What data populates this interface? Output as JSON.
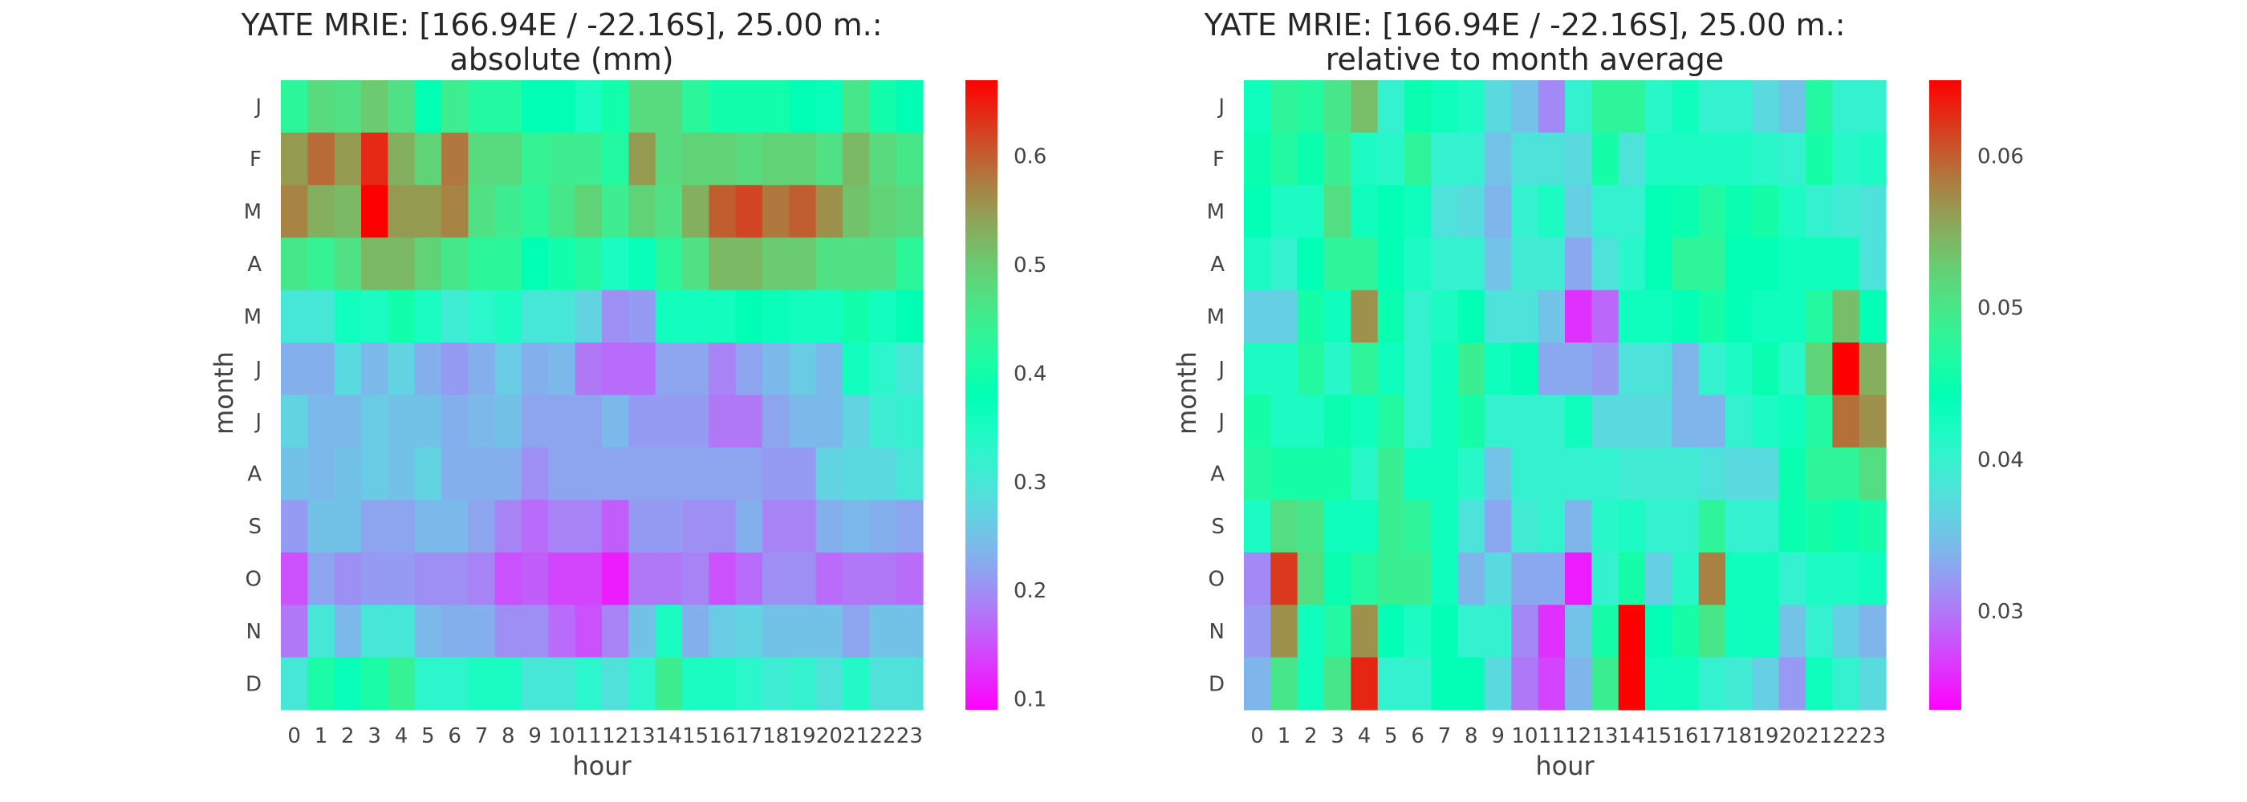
{
  "chart_data": [
    {
      "type": "heatmap",
      "title": "YATE MRIE: [166.94E / -22.16S], 25.00 m.:",
      "subtitle": "absolute (mm)",
      "xlabel": "hour",
      "ylabel": "month",
      "x": [
        "0",
        "1",
        "2",
        "3",
        "4",
        "5",
        "6",
        "7",
        "8",
        "9",
        "10",
        "11",
        "12",
        "13",
        "14",
        "15",
        "16",
        "17",
        "18",
        "19",
        "20",
        "21",
        "22",
        "23"
      ],
      "y": [
        "J",
        "F",
        "M",
        "A",
        "M",
        "J",
        "J",
        "A",
        "S",
        "O",
        "N",
        "D"
      ],
      "colormap": "rainbow",
      "colorbar": {
        "min": 0.09,
        "max": 0.67,
        "ticks": [
          0.1,
          0.2,
          0.3,
          0.4,
          0.5,
          0.6
        ]
      },
      "values": [
        [
          0.43,
          0.48,
          0.47,
          0.5,
          0.47,
          0.38,
          0.45,
          0.42,
          0.42,
          0.38,
          0.38,
          0.35,
          0.4,
          0.48,
          0.48,
          0.43,
          0.4,
          0.4,
          0.4,
          0.38,
          0.37,
          0.46,
          0.4,
          0.38
        ],
        [
          0.55,
          0.59,
          0.55,
          0.64,
          0.53,
          0.49,
          0.58,
          0.48,
          0.48,
          0.44,
          0.45,
          0.45,
          0.42,
          0.55,
          0.48,
          0.49,
          0.49,
          0.48,
          0.49,
          0.49,
          0.47,
          0.52,
          0.48,
          0.46
        ],
        [
          0.57,
          0.53,
          0.52,
          0.67,
          0.55,
          0.55,
          0.57,
          0.47,
          0.45,
          0.43,
          0.46,
          0.49,
          0.45,
          0.49,
          0.47,
          0.53,
          0.6,
          0.62,
          0.58,
          0.6,
          0.56,
          0.51,
          0.49,
          0.48
        ],
        [
          0.46,
          0.44,
          0.47,
          0.52,
          0.52,
          0.49,
          0.46,
          0.43,
          0.43,
          0.38,
          0.4,
          0.42,
          0.35,
          0.37,
          0.43,
          0.47,
          0.52,
          0.52,
          0.5,
          0.5,
          0.47,
          0.47,
          0.47,
          0.43
        ],
        [
          0.3,
          0.3,
          0.36,
          0.35,
          0.4,
          0.35,
          0.31,
          0.33,
          0.35,
          0.3,
          0.3,
          0.27,
          0.2,
          0.21,
          0.36,
          0.36,
          0.36,
          0.38,
          0.37,
          0.36,
          0.36,
          0.4,
          0.36,
          0.38
        ],
        [
          0.23,
          0.23,
          0.28,
          0.24,
          0.27,
          0.23,
          0.21,
          0.23,
          0.26,
          0.23,
          0.24,
          0.18,
          0.17,
          0.17,
          0.22,
          0.22,
          0.19,
          0.22,
          0.24,
          0.26,
          0.24,
          0.36,
          0.33,
          0.3
        ],
        [
          0.27,
          0.24,
          0.24,
          0.26,
          0.25,
          0.25,
          0.23,
          0.24,
          0.25,
          0.22,
          0.22,
          0.22,
          0.24,
          0.21,
          0.21,
          0.21,
          0.18,
          0.18,
          0.22,
          0.24,
          0.24,
          0.27,
          0.31,
          0.32
        ],
        [
          0.25,
          0.24,
          0.25,
          0.26,
          0.25,
          0.27,
          0.23,
          0.23,
          0.23,
          0.2,
          0.22,
          0.22,
          0.22,
          0.22,
          0.22,
          0.22,
          0.22,
          0.22,
          0.21,
          0.21,
          0.27,
          0.28,
          0.28,
          0.3
        ],
        [
          0.21,
          0.25,
          0.25,
          0.22,
          0.22,
          0.24,
          0.24,
          0.22,
          0.19,
          0.17,
          0.19,
          0.19,
          0.16,
          0.21,
          0.21,
          0.2,
          0.2,
          0.23,
          0.19,
          0.19,
          0.23,
          0.24,
          0.23,
          0.22
        ],
        [
          0.15,
          0.22,
          0.2,
          0.21,
          0.21,
          0.2,
          0.2,
          0.19,
          0.15,
          0.16,
          0.14,
          0.14,
          0.11,
          0.18,
          0.18,
          0.19,
          0.15,
          0.17,
          0.2,
          0.2,
          0.17,
          0.18,
          0.18,
          0.17
        ],
        [
          0.18,
          0.3,
          0.24,
          0.3,
          0.3,
          0.24,
          0.23,
          0.23,
          0.2,
          0.2,
          0.17,
          0.15,
          0.19,
          0.25,
          0.35,
          0.23,
          0.26,
          0.27,
          0.25,
          0.25,
          0.25,
          0.22,
          0.25,
          0.25
        ],
        [
          0.3,
          0.41,
          0.37,
          0.41,
          0.44,
          0.33,
          0.33,
          0.35,
          0.35,
          0.3,
          0.3,
          0.33,
          0.29,
          0.33,
          0.45,
          0.35,
          0.35,
          0.33,
          0.31,
          0.32,
          0.29,
          0.34,
          0.29,
          0.29
        ]
      ]
    },
    {
      "type": "heatmap",
      "title": "YATE MRIE: [166.94E / -22.16S], 25.00 m.:",
      "subtitle": "relative to month average",
      "xlabel": "hour",
      "ylabel": "month",
      "x": [
        "0",
        "1",
        "2",
        "3",
        "4",
        "5",
        "6",
        "7",
        "8",
        "9",
        "10",
        "11",
        "12",
        "13",
        "14",
        "15",
        "16",
        "17",
        "18",
        "19",
        "20",
        "21",
        "22",
        "23"
      ],
      "y": [
        "J",
        "F",
        "M",
        "A",
        "M",
        "J",
        "J",
        "A",
        "S",
        "O",
        "N",
        "D"
      ],
      "colormap": "rainbow",
      "colorbar": {
        "min": 0.0235,
        "max": 0.065,
        "ticks": [
          0.03,
          0.04,
          0.05,
          0.06
        ]
      },
      "values": [
        [
          0.043,
          0.048,
          0.047,
          0.05,
          0.054,
          0.04,
          0.045,
          0.043,
          0.042,
          0.037,
          0.035,
          0.031,
          0.04,
          0.048,
          0.048,
          0.041,
          0.043,
          0.04,
          0.04,
          0.037,
          0.035,
          0.047,
          0.04,
          0.04
        ],
        [
          0.045,
          0.047,
          0.045,
          0.049,
          0.042,
          0.041,
          0.048,
          0.04,
          0.04,
          0.035,
          0.038,
          0.038,
          0.037,
          0.046,
          0.038,
          0.042,
          0.042,
          0.042,
          0.042,
          0.041,
          0.04,
          0.046,
          0.041,
          0.042
        ],
        [
          0.044,
          0.042,
          0.042,
          0.051,
          0.043,
          0.044,
          0.043,
          0.038,
          0.037,
          0.034,
          0.04,
          0.042,
          0.036,
          0.04,
          0.04,
          0.044,
          0.045,
          0.047,
          0.045,
          0.046,
          0.042,
          0.04,
          0.039,
          0.038
        ],
        [
          0.042,
          0.04,
          0.044,
          0.048,
          0.048,
          0.044,
          0.042,
          0.04,
          0.04,
          0.035,
          0.039,
          0.039,
          0.033,
          0.038,
          0.041,
          0.044,
          0.048,
          0.048,
          0.044,
          0.044,
          0.043,
          0.043,
          0.043,
          0.038
        ],
        [
          0.036,
          0.036,
          0.046,
          0.043,
          0.057,
          0.045,
          0.04,
          0.042,
          0.044,
          0.038,
          0.038,
          0.035,
          0.026,
          0.029,
          0.043,
          0.043,
          0.044,
          0.046,
          0.044,
          0.043,
          0.043,
          0.047,
          0.054,
          0.044
        ],
        [
          0.042,
          0.042,
          0.047,
          0.041,
          0.048,
          0.043,
          0.04,
          0.043,
          0.049,
          0.043,
          0.044,
          0.033,
          0.033,
          0.032,
          0.038,
          0.038,
          0.034,
          0.04,
          0.042,
          0.045,
          0.041,
          0.052,
          0.065,
          0.055
        ],
        [
          0.046,
          0.042,
          0.042,
          0.045,
          0.043,
          0.047,
          0.04,
          0.043,
          0.046,
          0.04,
          0.04,
          0.04,
          0.043,
          0.037,
          0.037,
          0.037,
          0.034,
          0.034,
          0.04,
          0.042,
          0.043,
          0.047,
          0.059,
          0.057
        ],
        [
          0.047,
          0.046,
          0.046,
          0.046,
          0.041,
          0.049,
          0.043,
          0.043,
          0.041,
          0.035,
          0.04,
          0.04,
          0.04,
          0.04,
          0.039,
          0.039,
          0.039,
          0.038,
          0.037,
          0.037,
          0.045,
          0.048,
          0.048,
          0.051
        ],
        [
          0.042,
          0.051,
          0.05,
          0.043,
          0.043,
          0.049,
          0.048,
          0.043,
          0.038,
          0.033,
          0.039,
          0.04,
          0.034,
          0.041,
          0.042,
          0.04,
          0.04,
          0.048,
          0.04,
          0.04,
          0.045,
          0.046,
          0.045,
          0.046
        ],
        [
          0.031,
          0.062,
          0.051,
          0.045,
          0.047,
          0.049,
          0.049,
          0.043,
          0.034,
          0.037,
          0.033,
          0.033,
          0.025,
          0.04,
          0.046,
          0.036,
          0.041,
          0.058,
          0.043,
          0.043,
          0.04,
          0.042,
          0.042,
          0.043
        ],
        [
          0.032,
          0.057,
          0.043,
          0.047,
          0.057,
          0.044,
          0.042,
          0.044,
          0.04,
          0.04,
          0.031,
          0.026,
          0.035,
          0.046,
          0.065,
          0.044,
          0.046,
          0.05,
          0.043,
          0.043,
          0.035,
          0.04,
          0.036,
          0.034
        ],
        [
          0.034,
          0.05,
          0.043,
          0.05,
          0.063,
          0.04,
          0.04,
          0.044,
          0.044,
          0.037,
          0.03,
          0.027,
          0.034,
          0.049,
          0.065,
          0.043,
          0.043,
          0.04,
          0.039,
          0.036,
          0.032,
          0.043,
          0.04,
          0.037
        ]
      ]
    }
  ]
}
